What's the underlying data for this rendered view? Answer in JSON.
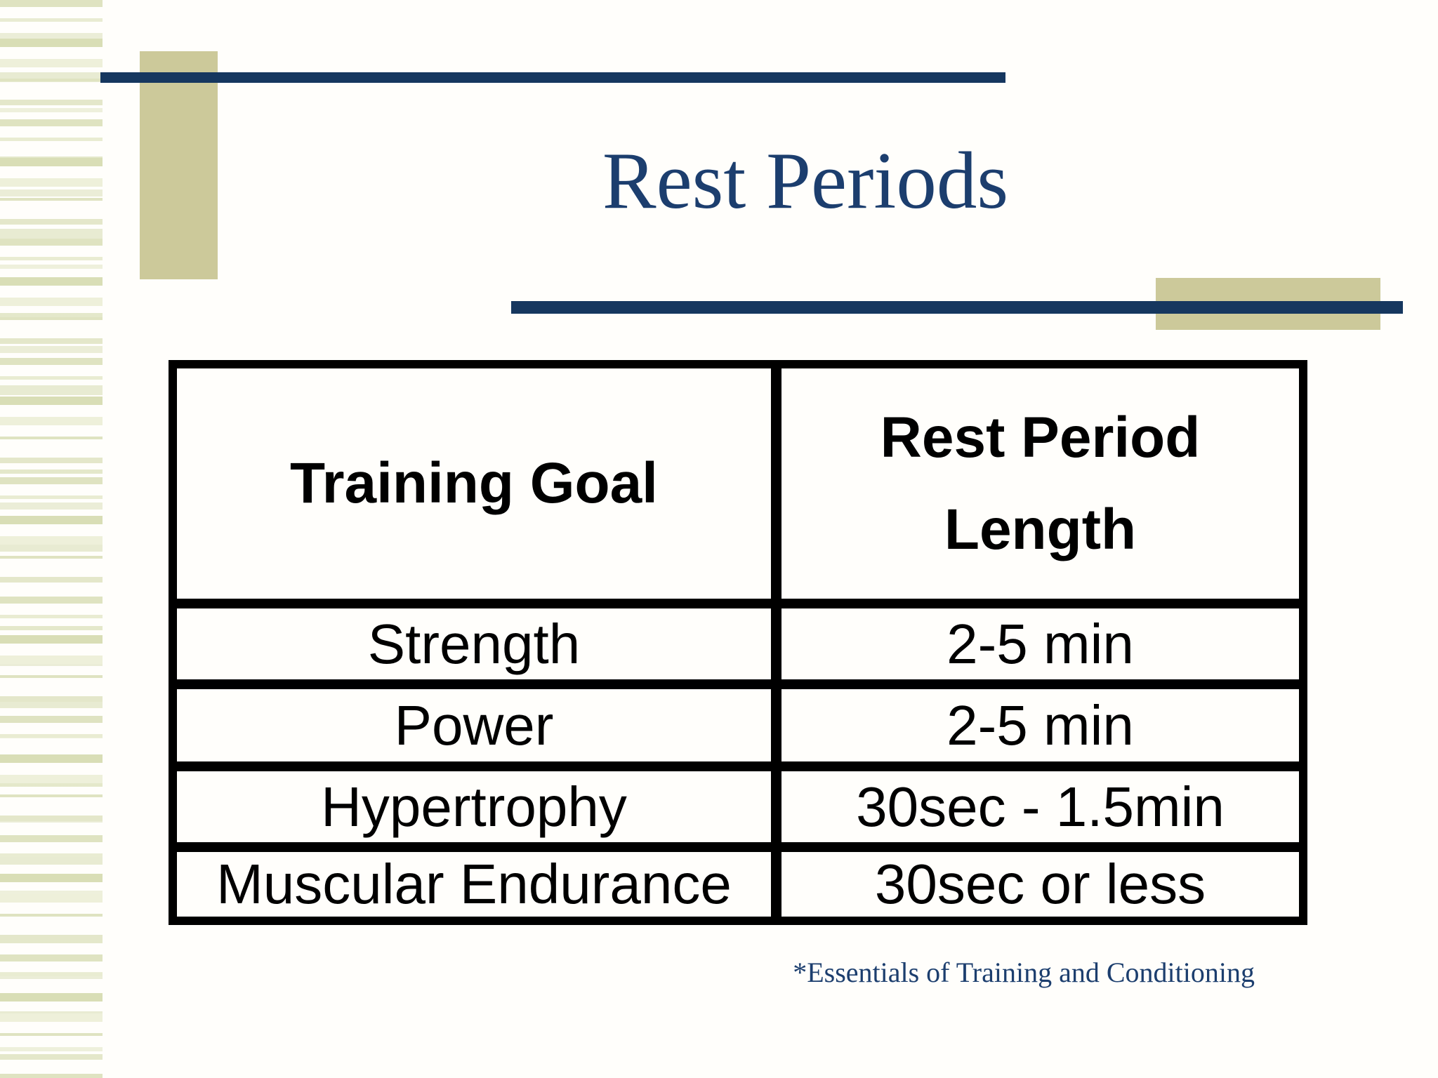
{
  "slide": {
    "title": "Rest Periods",
    "footnote": "*Essentials of Training and Conditioning"
  },
  "table": {
    "headers": [
      "Training Goal",
      "Rest Period Length"
    ],
    "rows": [
      [
        "Strength",
        "2-5 min"
      ],
      [
        "Power",
        "2-5 min"
      ],
      [
        "Hypertrophy",
        "30sec - 1.5min"
      ],
      [
        "Muscular Endurance",
        "30sec or less"
      ]
    ]
  },
  "colors": {
    "navy-bar": "#16375f",
    "navy-text": "#1c3e6e",
    "tan": "#ccc99a",
    "table-border": "#000000",
    "background": "#fffefb"
  }
}
